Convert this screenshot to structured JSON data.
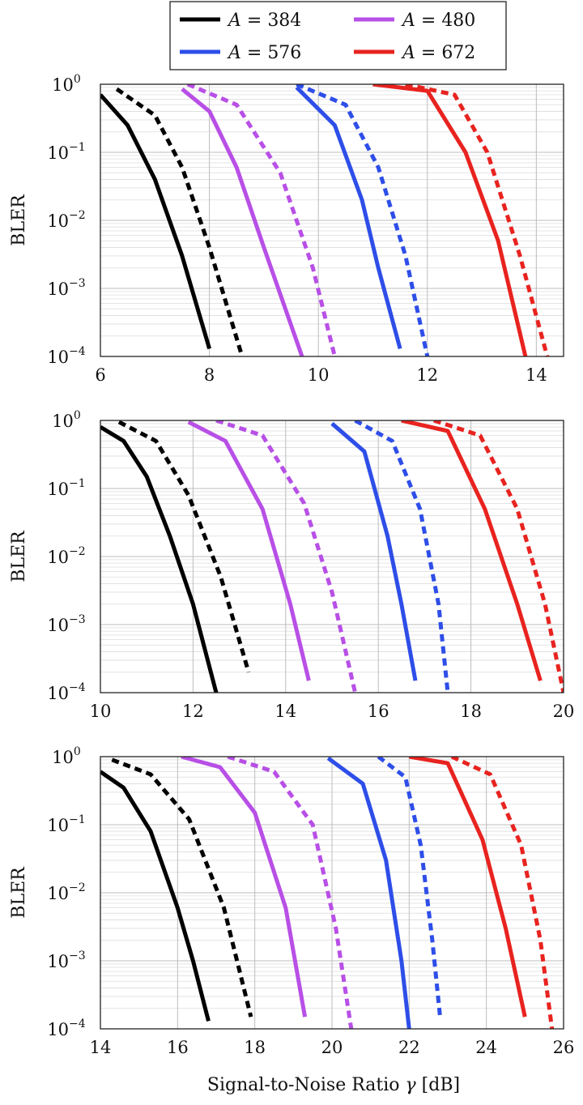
{
  "legend": {
    "position": "top",
    "entries": [
      {
        "label": "A = 384",
        "var": "A",
        "value": "384",
        "color": "#000000"
      },
      {
        "label": "A = 480",
        "var": "A",
        "value": "480",
        "color": "#b84fe6"
      },
      {
        "label": "A = 576",
        "var": "A",
        "value": "576",
        "color": "#2e4ee8"
      },
      {
        "label": "A = 672",
        "var": "A",
        "value": "672",
        "color": "#e8231f"
      }
    ]
  },
  "xlabel": {
    "text": "Signal-to-Noise Ratio",
    "symbol": "γ",
    "unit": "[dB]"
  },
  "chart_data": [
    {
      "type": "line",
      "ylabel": "BLER",
      "yscale": "log",
      "ylim": [
        0.0001,
        1
      ],
      "xlim": [
        6,
        14.5
      ],
      "xticks": [
        6,
        8,
        10,
        12,
        14
      ],
      "grid": true,
      "series": [
        {
          "name": "A = 384",
          "color": "#000000",
          "dash": false,
          "x": [
            6,
            6.5,
            7,
            7.5,
            8
          ],
          "y": [
            0.7,
            0.25,
            0.04,
            0.003,
            0.00013
          ]
        },
        {
          "name": "A = 384",
          "color": "#000000",
          "dash": true,
          "x": [
            6.3,
            7,
            7.5,
            8,
            8.6
          ],
          "y": [
            0.85,
            0.35,
            0.06,
            0.004,
            0.0001
          ]
        },
        {
          "name": "A = 480",
          "color": "#b84fe6",
          "dash": false,
          "x": [
            7.5,
            8,
            8.5,
            9,
            9.7
          ],
          "y": [
            0.85,
            0.4,
            0.06,
            0.004,
            0.0001
          ]
        },
        {
          "name": "A = 480",
          "color": "#b84fe6",
          "dash": true,
          "x": [
            7.6,
            8.5,
            9.3,
            9.9,
            10.3
          ],
          "y": [
            1,
            0.5,
            0.05,
            0.002,
            0.0001
          ]
        },
        {
          "name": "A = 576",
          "color": "#2e4ee8",
          "dash": false,
          "x": [
            9.6,
            10.3,
            10.8,
            11.1,
            11.5
          ],
          "y": [
            0.9,
            0.25,
            0.02,
            0.002,
            0.00013
          ]
        },
        {
          "name": "A = 576",
          "color": "#2e4ee8",
          "dash": true,
          "x": [
            9.6,
            10.5,
            11.1,
            11.6,
            12
          ],
          "y": [
            1,
            0.5,
            0.06,
            0.003,
            0.0001
          ]
        },
        {
          "name": "A = 672",
          "color": "#e8231f",
          "dash": false,
          "x": [
            11,
            12,
            12.7,
            13.3,
            13.8
          ],
          "y": [
            1,
            0.8,
            0.1,
            0.005,
            0.0001
          ]
        },
        {
          "name": "A = 672",
          "color": "#e8231f",
          "dash": true,
          "x": [
            11.6,
            12.5,
            13.1,
            13.7,
            14.2
          ],
          "y": [
            1,
            0.7,
            0.1,
            0.003,
            0.0001
          ]
        }
      ]
    },
    {
      "type": "line",
      "ylabel": "BLER",
      "yscale": "log",
      "ylim": [
        0.0001,
        1
      ],
      "xlim": [
        10,
        20
      ],
      "xticks": [
        10,
        12,
        14,
        16,
        18,
        20
      ],
      "grid": true,
      "series": [
        {
          "name": "A = 384",
          "color": "#000000",
          "dash": false,
          "x": [
            10,
            10.5,
            11,
            11.5,
            12,
            12.5
          ],
          "y": [
            0.8,
            0.5,
            0.15,
            0.02,
            0.002,
            0.0001
          ]
        },
        {
          "name": "A = 384",
          "color": "#000000",
          "dash": true,
          "x": [
            10.4,
            11.2,
            11.9,
            12.6,
            13.2
          ],
          "y": [
            0.95,
            0.5,
            0.08,
            0.005,
            0.0002
          ]
        },
        {
          "name": "A = 480",
          "color": "#b84fe6",
          "dash": false,
          "x": [
            11.9,
            12.7,
            13.5,
            14.1,
            14.5
          ],
          "y": [
            0.95,
            0.5,
            0.05,
            0.002,
            0.00015
          ]
        },
        {
          "name": "A = 480",
          "color": "#b84fe6",
          "dash": true,
          "x": [
            12.5,
            13.5,
            14.4,
            15,
            15.5
          ],
          "y": [
            1,
            0.6,
            0.06,
            0.003,
            0.0001
          ]
        },
        {
          "name": "A = 576",
          "color": "#2e4ee8",
          "dash": false,
          "x": [
            15,
            15.7,
            16.2,
            16.5,
            16.8
          ],
          "y": [
            0.9,
            0.35,
            0.02,
            0.002,
            0.00015
          ]
        },
        {
          "name": "A = 576",
          "color": "#2e4ee8",
          "dash": true,
          "x": [
            15.5,
            16.3,
            16.9,
            17.3,
            17.5
          ],
          "y": [
            1,
            0.5,
            0.05,
            0.002,
            0.0001
          ]
        },
        {
          "name": "A = 672",
          "color": "#e8231f",
          "dash": false,
          "x": [
            16.5,
            17.5,
            18.3,
            19,
            19.5
          ],
          "y": [
            1,
            0.7,
            0.05,
            0.002,
            0.00015
          ]
        },
        {
          "name": "A = 672",
          "color": "#e8231f",
          "dash": true,
          "x": [
            17.2,
            18.2,
            19,
            19.6,
            20
          ],
          "y": [
            1,
            0.6,
            0.05,
            0.002,
            0.0001
          ]
        }
      ]
    },
    {
      "type": "line",
      "ylabel": "BLER",
      "yscale": "log",
      "ylim": [
        0.0001,
        1
      ],
      "xlim": [
        14,
        26
      ],
      "xticks": [
        14,
        16,
        18,
        20,
        22,
        24,
        26
      ],
      "grid": true,
      "series": [
        {
          "name": "A = 384",
          "color": "#000000",
          "dash": false,
          "x": [
            14,
            14.6,
            15.3,
            16,
            16.4,
            16.8
          ],
          "y": [
            0.6,
            0.35,
            0.08,
            0.006,
            0.001,
            0.00013
          ]
        },
        {
          "name": "A = 384",
          "color": "#000000",
          "dash": true,
          "x": [
            14.3,
            15.3,
            16.3,
            17.2,
            17.9
          ],
          "y": [
            0.9,
            0.55,
            0.12,
            0.006,
            0.00015
          ]
        },
        {
          "name": "A = 480",
          "color": "#b84fe6",
          "dash": false,
          "x": [
            16.1,
            17.1,
            18,
            18.8,
            19.3
          ],
          "y": [
            1,
            0.7,
            0.15,
            0.006,
            0.00015
          ]
        },
        {
          "name": "A = 480",
          "color": "#b84fe6",
          "dash": true,
          "x": [
            17.3,
            18.5,
            19.5,
            20.1,
            20.5
          ],
          "y": [
            1,
            0.6,
            0.1,
            0.003,
            0.0001
          ]
        },
        {
          "name": "A = 576",
          "color": "#2e4ee8",
          "dash": false,
          "x": [
            19.9,
            20.8,
            21.4,
            21.8,
            22
          ],
          "y": [
            0.95,
            0.4,
            0.03,
            0.001,
            0.0001
          ]
        },
        {
          "name": "A = 576",
          "color": "#2e4ee8",
          "dash": true,
          "x": [
            21.2,
            21.9,
            22.3,
            22.6,
            22.8
          ],
          "y": [
            1,
            0.5,
            0.05,
            0.002,
            0.00015
          ]
        },
        {
          "name": "A = 672",
          "color": "#e8231f",
          "dash": false,
          "x": [
            22,
            23,
            23.9,
            24.5,
            25
          ],
          "y": [
            1,
            0.8,
            0.06,
            0.003,
            0.00015
          ]
        },
        {
          "name": "A = 672",
          "color": "#e8231f",
          "dash": true,
          "x": [
            23.1,
            24.1,
            24.9,
            25.4,
            25.7
          ],
          "y": [
            1,
            0.55,
            0.05,
            0.002,
            0.0001
          ]
        }
      ]
    }
  ]
}
